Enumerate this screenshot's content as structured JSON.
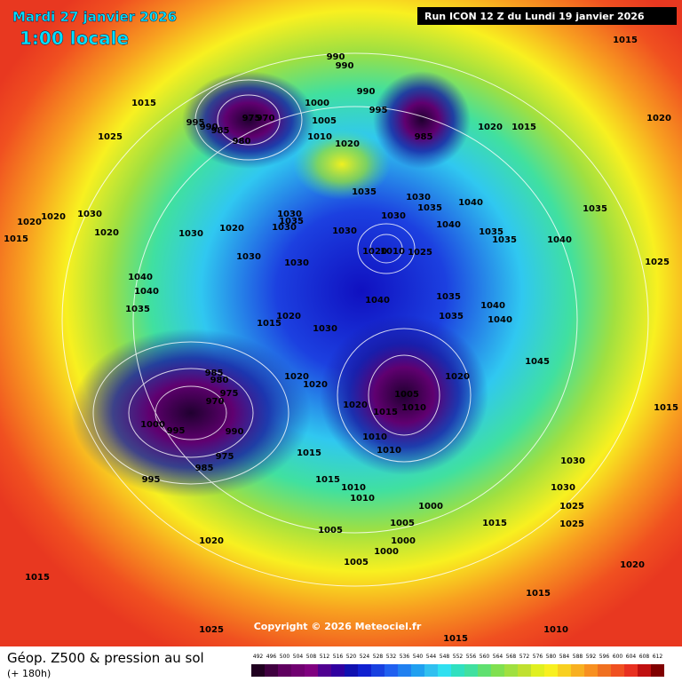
{
  "header": {
    "date": "Mardi 27 janvier 2026",
    "time": "1:00 locale",
    "run": "Run ICON 12 Z du Lundi 19 janvier 2026"
  },
  "footer": {
    "title": "Géop. Z500 & pression au sol",
    "lead": "(+ 180h)"
  },
  "copyright": "Copyright © 2026 Meteociel.fr",
  "legend": {
    "levels": [
      492,
      496,
      500,
      504,
      508,
      512,
      516,
      520,
      524,
      528,
      532,
      536,
      540,
      544,
      548,
      552,
      556,
      560,
      564,
      568,
      572,
      576,
      580,
      584,
      588,
      592,
      596,
      600,
      604,
      608,
      612
    ]
  },
  "isobars": {
    "labels": [
      1015,
      1015,
      1025,
      995,
      990,
      985,
      975,
      970,
      980,
      1000,
      1005,
      1010,
      1020,
      995,
      990,
      990,
      990,
      985,
      1020,
      1015,
      1020,
      1035,
      1030,
      1035,
      1040,
      1030,
      1035,
      1030,
      1035,
      1030,
      1020,
      1030,
      1030,
      1020,
      1010,
      1025,
      1030,
      1030,
      1040,
      1035,
      1035,
      1040,
      1040,
      1040,
      1035,
      1040,
      1035,
      1040,
      1040,
      1035,
      1045,
      1020,
      1015,
      1030,
      985,
      980,
      975,
      970,
      1000,
      995,
      990,
      975,
      985,
      995,
      1020,
      1020,
      1020,
      1005,
      1015,
      1010,
      1010,
      1010,
      1015,
      1015,
      1010,
      1010,
      1000,
      1005,
      1005,
      1000,
      1000,
      1005,
      1020,
      1030,
      1030,
      1025,
      1025,
      1015,
      1020,
      1015,
      1015,
      1020,
      1025,
      1015,
      1010,
      1015,
      1025,
      1015,
      1020,
      1020,
      1030,
      1020
    ]
  }
}
